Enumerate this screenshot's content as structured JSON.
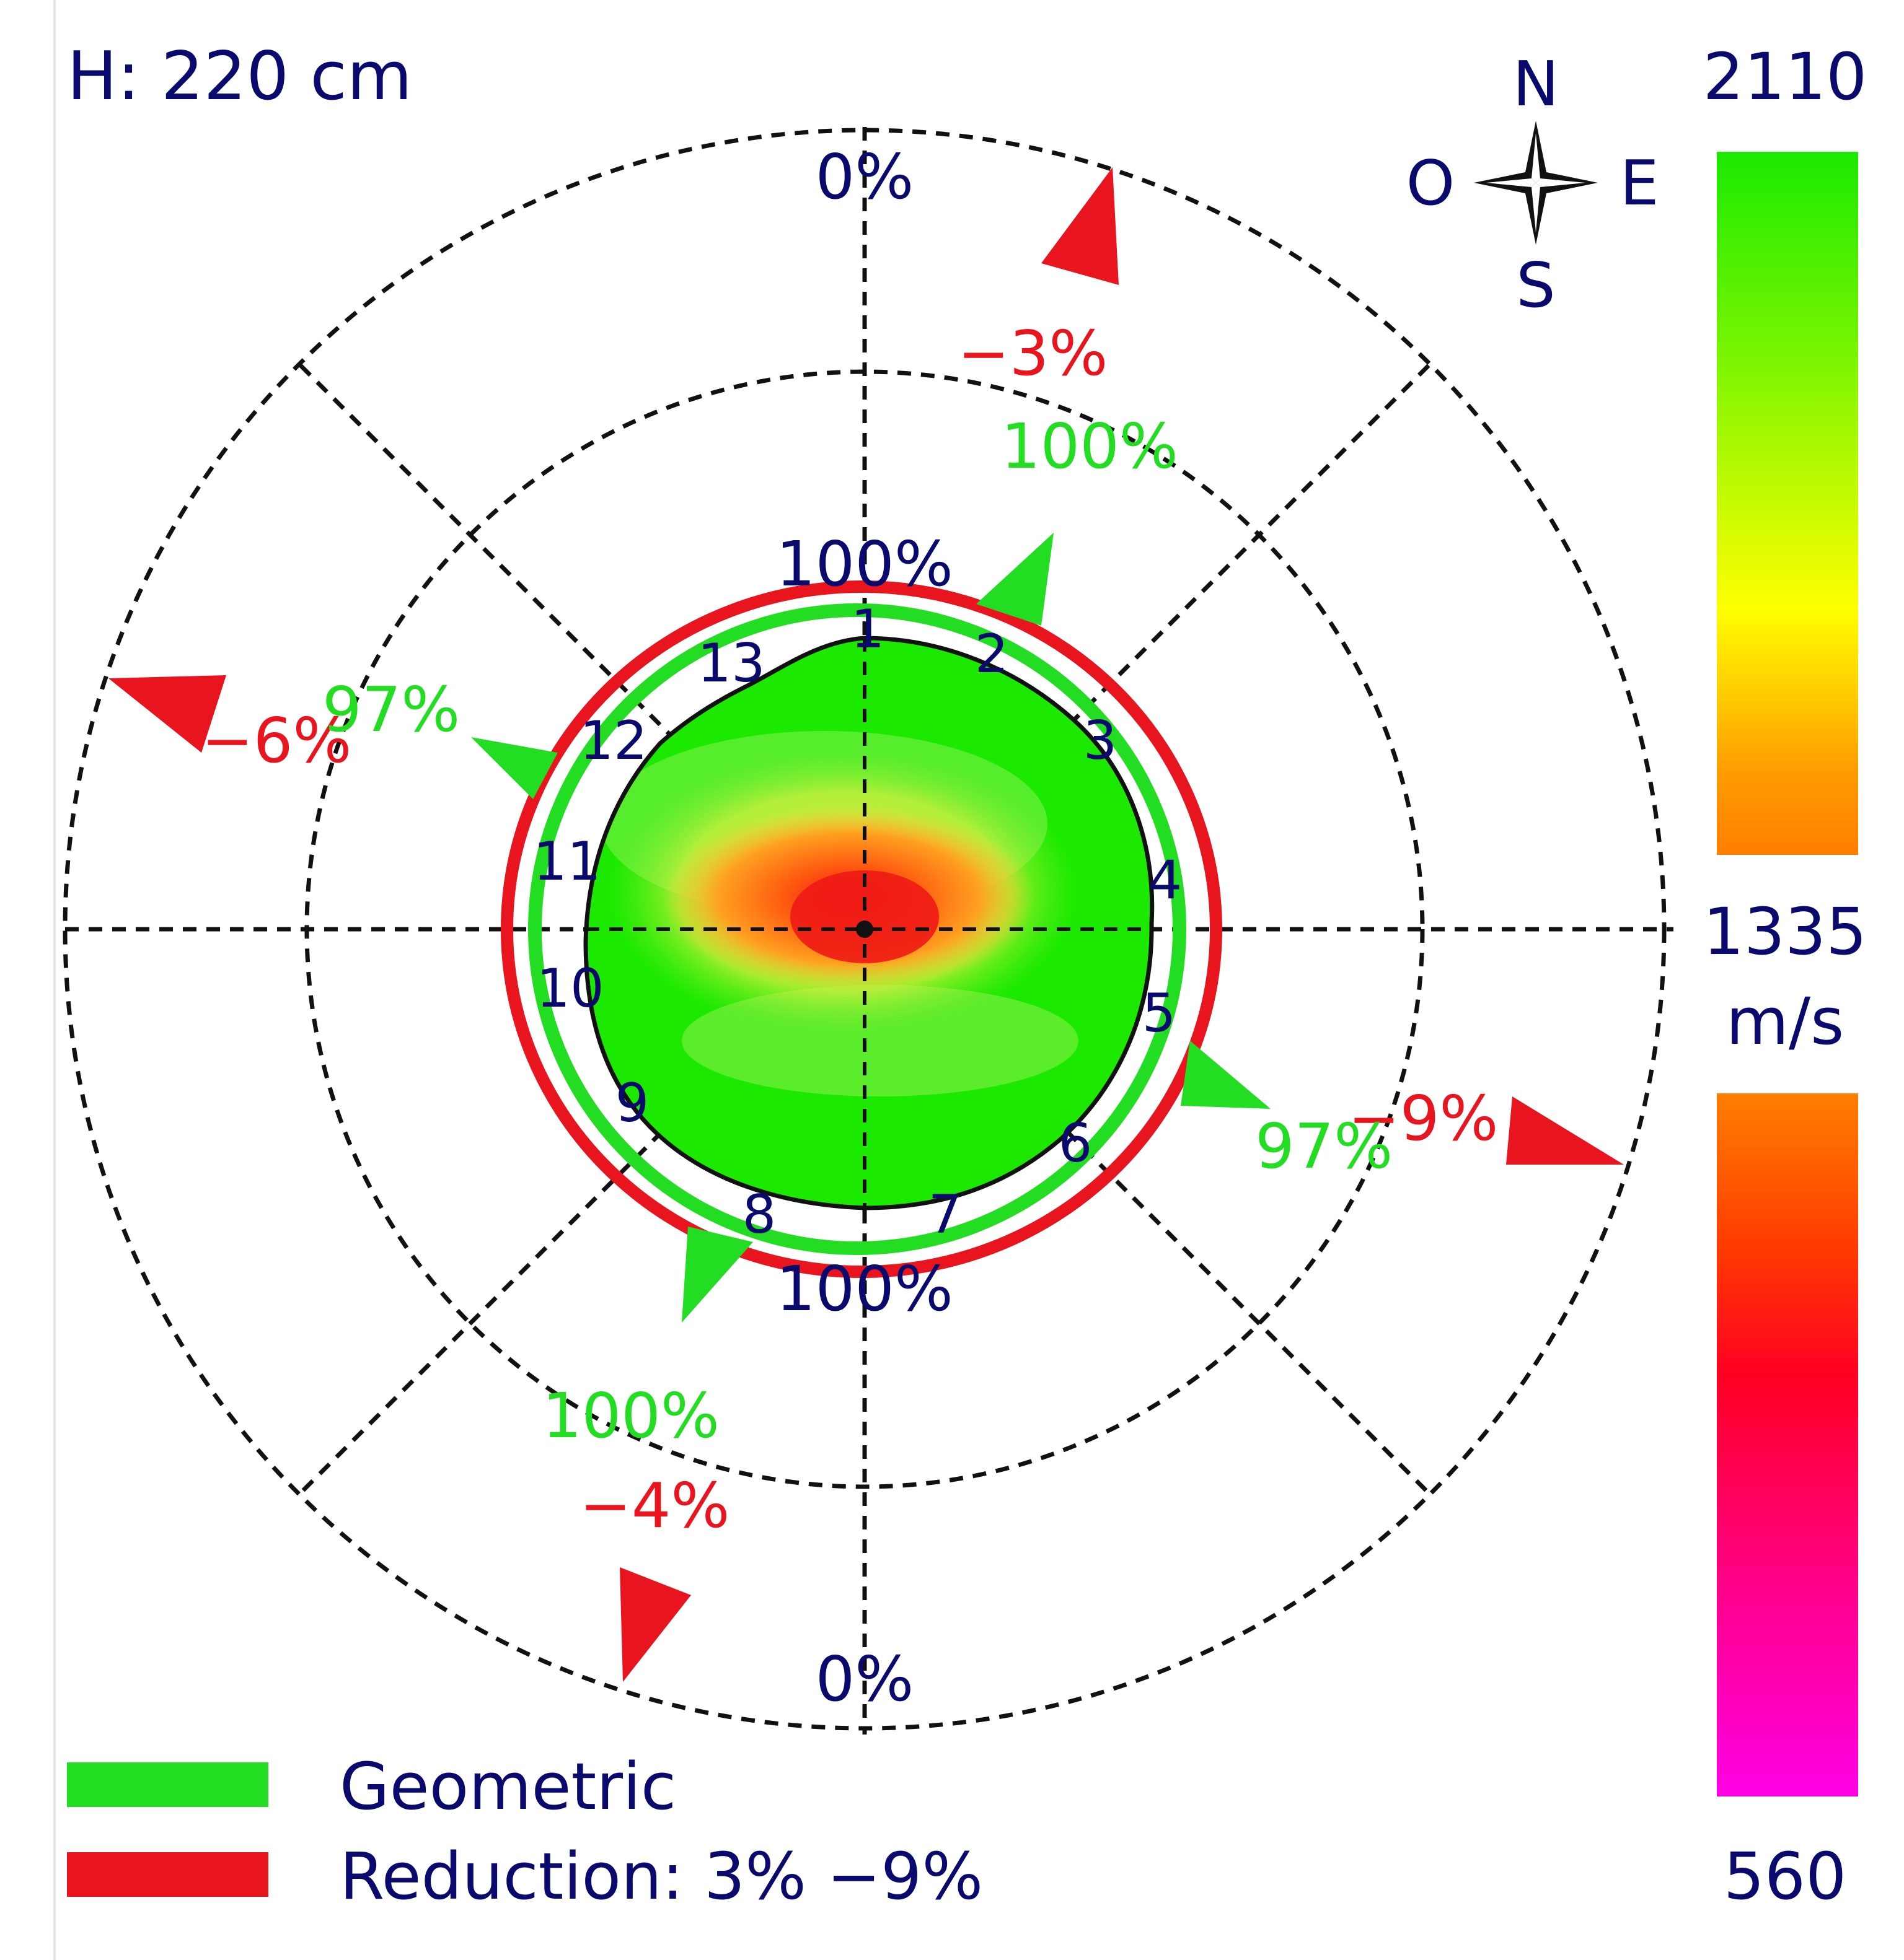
{
  "height_label": "H: 220 cm",
  "compass": {
    "north": "N",
    "south": "S",
    "east": "E",
    "west": "O"
  },
  "color_scale": {
    "max": "2110",
    "mid": "1335",
    "min": "560",
    "unit": "m/s",
    "gradient_upper": [
      "#1bea00",
      "#7df500",
      "#ffff00",
      "#ff9d00",
      "#ff7f00"
    ],
    "gradient_lower": [
      "#ff7f00",
      "#ff3a00",
      "#ff0022",
      "#ff0088",
      "#ff00e6"
    ]
  },
  "ring_labels": {
    "top_outer": "0%",
    "top_inner": "100%",
    "bottom_inner": "100%",
    "bottom_outer": "0%"
  },
  "sensor_labels": [
    "1",
    "2",
    "3",
    "4",
    "5",
    "6",
    "7",
    "8",
    "9",
    "10",
    "11",
    "12",
    "13"
  ],
  "annotations": {
    "ne_reduction": "−3%",
    "ne_geometric": "100%",
    "nw_reduction": "−6%",
    "nw_geometric": "97%",
    "se_reduction": "−9%",
    "se_geometric": "97%",
    "sw_geometric": "100%",
    "sw_reduction": "−4%"
  },
  "legend": {
    "geometric_label": "Geometric",
    "geometric_color": "#22dd22",
    "reduction_label": "Reduction: 3% −9%",
    "reduction_color": "#e8141e"
  },
  "colors": {
    "text": "#0a0a6e",
    "geometric": "#22dd22",
    "reduction": "#e8141e"
  }
}
